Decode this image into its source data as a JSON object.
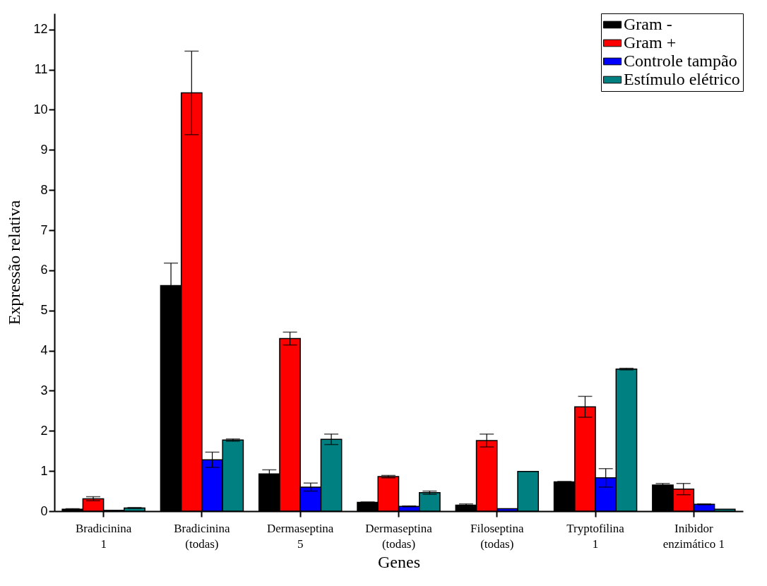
{
  "chart_data": {
    "type": "bar",
    "xlabel": "Genes",
    "ylabel": "Expressão relativa",
    "categories": [
      "Bradicinina\n1",
      "Bradicinina\n(todas)",
      "Dermaseptina\n5",
      "Dermaseptina\n(todas)",
      "Filoseptina\n(todas)",
      "Tryptofilina\n1",
      "Inibidor\nenzimático 1"
    ],
    "series": [
      {
        "name": "Gram -",
        "color": "#000000",
        "values": [
          0.05,
          5.62,
          0.93,
          0.22,
          0.15,
          0.73,
          0.65
        ],
        "errors": [
          0.01,
          0.56,
          0.1,
          0.01,
          0.03,
          0.01,
          0.04
        ]
      },
      {
        "name": "Gram +",
        "color": "#ff0000",
        "values": [
          0.31,
          10.42,
          4.3,
          0.86,
          1.76,
          2.6,
          0.55
        ],
        "errors": [
          0.05,
          1.04,
          0.16,
          0.03,
          0.16,
          0.26,
          0.14
        ]
      },
      {
        "name": "Controle tampão",
        "color": "#0000ff",
        "values": [
          0.02,
          1.28,
          0.6,
          0.12,
          0.06,
          0.83,
          0.17
        ],
        "errors": [
          null,
          0.19,
          0.1,
          0.01,
          null,
          0.23,
          0.01
        ]
      },
      {
        "name": "Estímulo elétrico",
        "color": "#008080",
        "values": [
          0.08,
          1.77,
          1.79,
          0.46,
          0.99,
          3.54,
          0.05
        ],
        "errors": [
          0.01,
          0.03,
          0.13,
          0.04,
          null,
          0.02,
          null
        ]
      }
    ],
    "ylim": [
      0,
      12.4
    ],
    "yticks": [
      0,
      1,
      2,
      3,
      4,
      5,
      6,
      7,
      8,
      9,
      10,
      11,
      12
    ],
    "legend": "top right",
    "grid": false
  }
}
